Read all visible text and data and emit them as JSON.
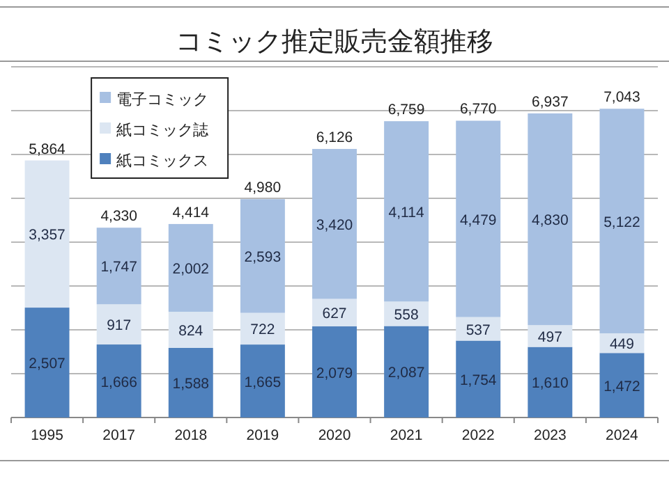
{
  "chart_data": {
    "type": "bar",
    "title": "コミック推定販売金額推移",
    "stacked": true,
    "categories": [
      "1995",
      "2017",
      "2018",
      "2019",
      "2020",
      "2021",
      "2022",
      "2023",
      "2024"
    ],
    "ylim": [
      0,
      8000
    ],
    "yticks": [
      {
        "value": 0,
        "label": null
      },
      {
        "value": 1000,
        "label": null
      },
      {
        "value": 2000,
        "label": null
      },
      {
        "value": 3000,
        "label": null
      },
      {
        "value": 4000,
        "label": null
      },
      {
        "value": 5000,
        "label": null
      },
      {
        "value": 6000,
        "label": null
      },
      {
        "value": 7000,
        "label": null
      },
      {
        "value": 8000,
        "label": null
      }
    ],
    "grid": "y",
    "legend": "top left",
    "series": [
      {
        "name": "紙コミックス",
        "color": "#4f81bd",
        "values": [
          2507,
          1666,
          1588,
          1665,
          2079,
          2087,
          1754,
          1610,
          1472
        ],
        "value_labels": [
          "2,507",
          "1,666",
          "1,588",
          "1,665",
          "2,079",
          "2,087",
          "1,754",
          "1,610",
          "1,472"
        ]
      },
      {
        "name": "紙コミック誌",
        "color": "#dce6f2",
        "values": [
          3357,
          917,
          824,
          722,
          627,
          558,
          537,
          497,
          449
        ],
        "value_labels": [
          "3,357",
          "917",
          "824",
          "722",
          "627",
          "558",
          "537",
          "497",
          "449"
        ]
      },
      {
        "name": "電子コミック",
        "color": "#a7c0e2",
        "values": [
          null,
          1747,
          2002,
          2593,
          3420,
          4114,
          4479,
          4830,
          5122
        ],
        "value_labels": [
          null,
          "1,747",
          "2,002",
          "2,593",
          "3,420",
          "4,114",
          "4,479",
          "4,830",
          "5,122"
        ]
      }
    ],
    "totals": [
      "5,864",
      "4,330",
      "4,414",
      "4,980",
      "6,126",
      "6,759",
      "6,770",
      "6,937",
      "7,043"
    ]
  }
}
